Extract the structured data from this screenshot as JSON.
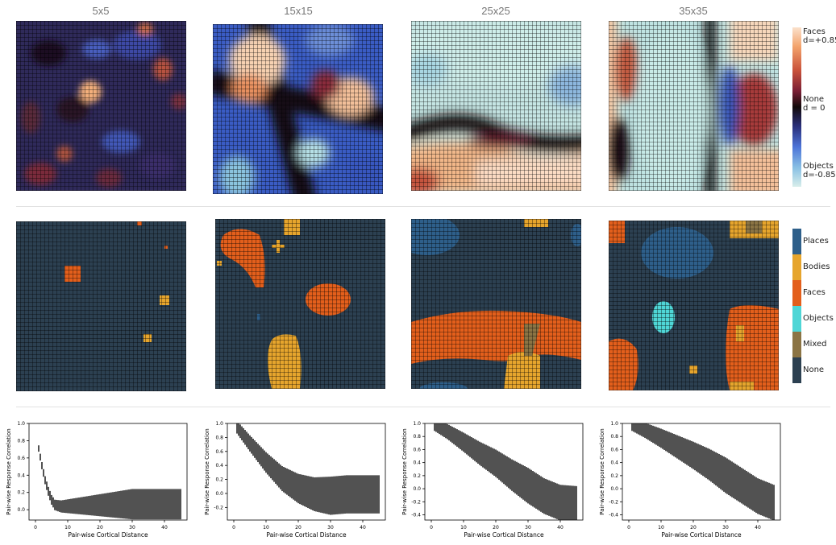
{
  "columns": [
    "5x5",
    "15x15",
    "25x25",
    "35x35"
  ],
  "colorbar": {
    "top_label": "Faces",
    "top_value": "d=+0.85",
    "mid_label": "None",
    "mid_value": "d = 0",
    "bottom_label": "Objects",
    "bottom_value": "d=-0.85"
  },
  "category_legend": [
    {
      "label": "Places",
      "color": "#2e5f8a"
    },
    {
      "label": "Bodies",
      "color": "#e6a52d"
    },
    {
      "label": "Faces",
      "color": "#e35f1c"
    },
    {
      "label": "Objects",
      "color": "#4fd6d6"
    },
    {
      "label": "Mixed",
      "color": "#8b7444"
    },
    {
      "label": "None",
      "color": "#2c4051"
    }
  ],
  "chart_data": [
    {
      "type": "scatter",
      "title": "5x5",
      "xlabel": "Pair-wise Cortical Distance",
      "ylabel": "Pair-wise Response Correlation",
      "xlim": [
        -2,
        47
      ],
      "ylim": [
        -0.12,
        1.0
      ],
      "xticks": [
        0,
        10,
        20,
        30,
        40
      ],
      "yticks": [
        0.0,
        0.2,
        0.4,
        0.6,
        0.8,
        1.0
      ],
      "trend": {
        "x": [
          1,
          2,
          3,
          4,
          5,
          6,
          8,
          10,
          20,
          30,
          40,
          45
        ],
        "y": [
          0.7,
          0.5,
          0.33,
          0.2,
          0.1,
          0.04,
          0.02,
          0.02,
          0.02,
          0.02,
          0.02,
          0.02
        ]
      }
    },
    {
      "type": "scatter",
      "title": "15x15",
      "xlabel": "Pair-wise Cortical Distance",
      "ylabel": "Pair-wise Response Correlation",
      "xlim": [
        -2,
        47
      ],
      "ylim": [
        -0.38,
        1.0
      ],
      "xticks": [
        0,
        10,
        20,
        30,
        40
      ],
      "yticks": [
        -0.2,
        0.0,
        0.2,
        0.4,
        0.6,
        0.8,
        1.0
      ],
      "trend": {
        "x": [
          1,
          5,
          10,
          15,
          20,
          25,
          30,
          35,
          40,
          45
        ],
        "y": [
          0.95,
          0.72,
          0.45,
          0.22,
          0.08,
          0.0,
          -0.02,
          0.0,
          0.0,
          0.0
        ]
      }
    },
    {
      "type": "scatter",
      "title": "25x25",
      "xlabel": "Pair-wise Cortical Distance",
      "ylabel": "Pair-wise Response Correlation",
      "xlim": [
        -2,
        47
      ],
      "ylim": [
        -0.48,
        1.0
      ],
      "xticks": [
        0,
        10,
        20,
        30,
        40
      ],
      "yticks": [
        -0.4,
        -0.2,
        0.0,
        0.2,
        0.4,
        0.6,
        0.8,
        1.0
      ],
      "trend": {
        "x": [
          1,
          5,
          10,
          15,
          20,
          25,
          30,
          35,
          40,
          45
        ],
        "y": [
          0.98,
          0.88,
          0.72,
          0.55,
          0.4,
          0.22,
          0.06,
          -0.1,
          -0.2,
          -0.22
        ]
      }
    },
    {
      "type": "scatter",
      "title": "35x35",
      "xlabel": "Pair-wise Cortical Distance",
      "ylabel": "Pair-wise Response Correlation",
      "xlim": [
        -2,
        47
      ],
      "ylim": [
        -0.48,
        1.0
      ],
      "xticks": [
        0,
        10,
        20,
        30,
        40
      ],
      "yticks": [
        -0.4,
        -0.2,
        0.0,
        0.2,
        0.4,
        0.6,
        0.8,
        1.0
      ],
      "trend": {
        "x": [
          1,
          5,
          10,
          15,
          20,
          25,
          30,
          35,
          40,
          45
        ],
        "y": [
          0.98,
          0.9,
          0.78,
          0.65,
          0.52,
          0.38,
          0.22,
          0.06,
          -0.1,
          -0.2
        ]
      }
    }
  ]
}
